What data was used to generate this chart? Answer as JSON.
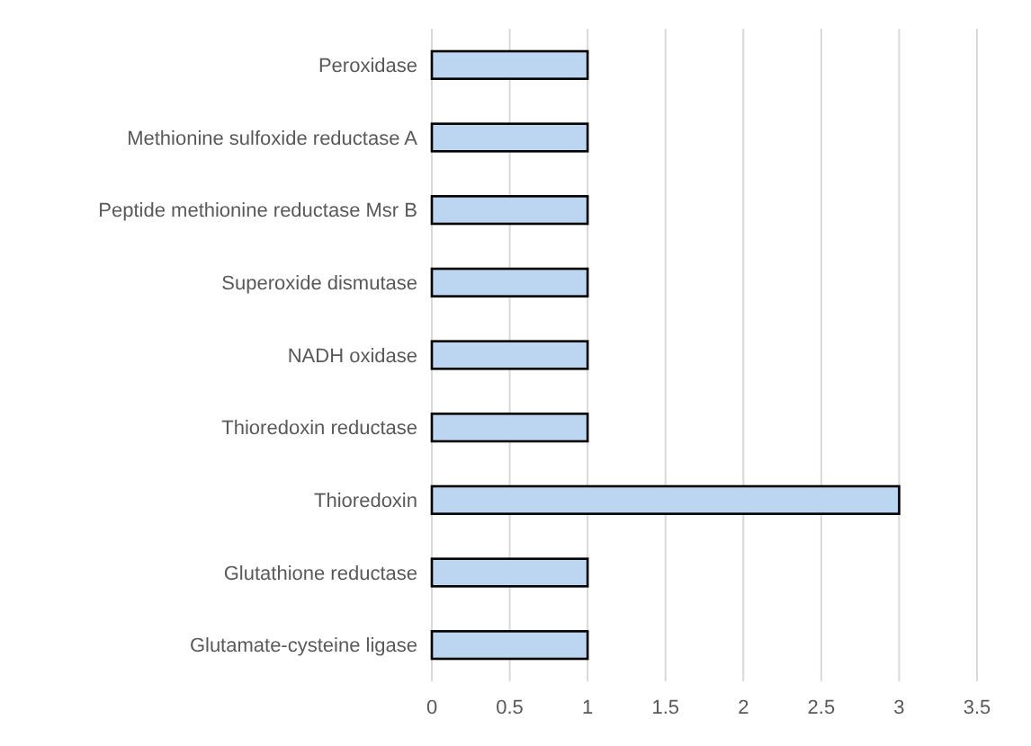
{
  "chart_data": {
    "type": "bar",
    "orientation": "horizontal",
    "categories": [
      "Peroxidase",
      "Methionine sulfoxide reductase A",
      "Peptide methionine reductase Msr B",
      "Superoxide dismutase",
      "NADH oxidase",
      "Thioredoxin reductase",
      "Thioredoxin",
      "Glutathione reductase",
      "Glutamate-cysteine ligase"
    ],
    "values": [
      1,
      1,
      1,
      1,
      1,
      1,
      3,
      1,
      1
    ],
    "color": "#bcd5f0",
    "xlim": [
      0,
      3.5
    ],
    "xticks": [
      0,
      0.5,
      1,
      1.5,
      2,
      2.5,
      3,
      3.5
    ],
    "grid": "x"
  }
}
